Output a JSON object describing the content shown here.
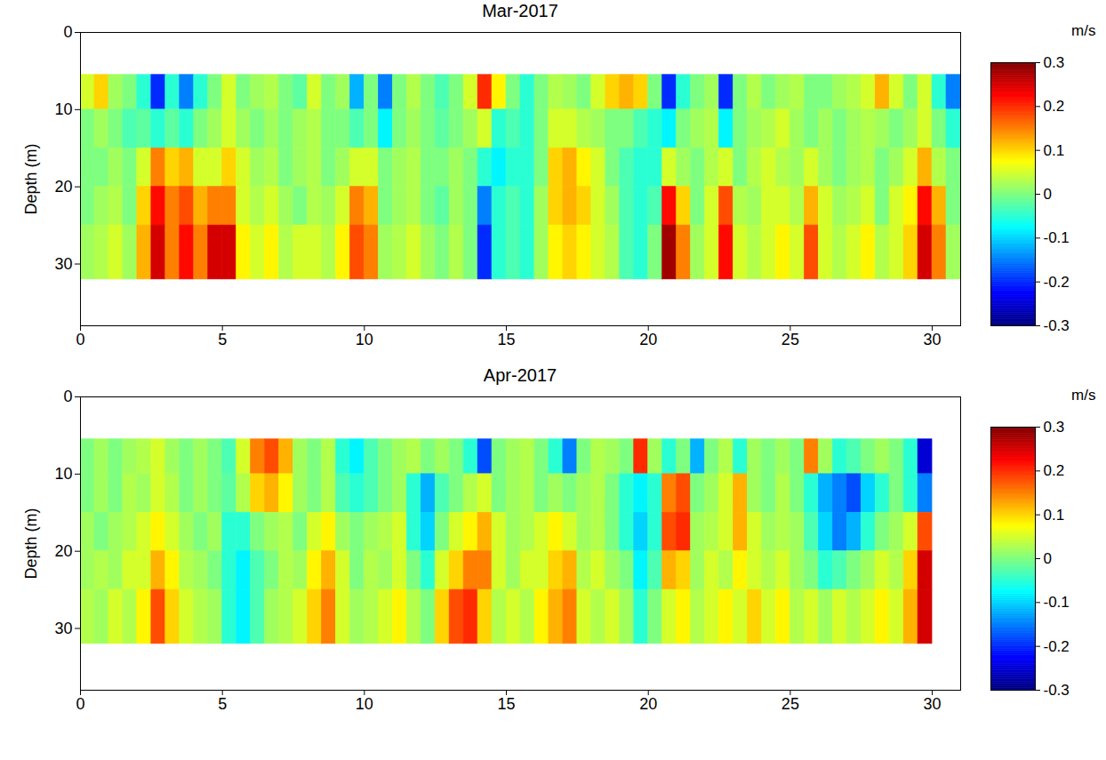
{
  "chart_data": [
    {
      "type": "heatmap",
      "title": "Mar-2017",
      "ylabel": "Depth (m)",
      "xlim": [
        0,
        31
      ],
      "xticks": [
        0,
        5,
        10,
        15,
        20,
        25,
        30
      ],
      "ylim": [
        0,
        38
      ],
      "yticks": [
        0,
        10,
        20,
        30
      ],
      "x_edges": [
        0,
        0.5,
        1,
        1.5,
        2,
        2.5,
        3,
        3.5,
        4,
        4.5,
        5,
        5.5,
        6,
        6.5,
        7,
        7.5,
        8,
        8.5,
        9,
        9.5,
        10,
        10.5,
        11,
        11.5,
        12,
        12.5,
        13,
        13.5,
        14,
        14.5,
        15,
        15.5,
        16,
        16.5,
        17,
        17.5,
        18,
        18.5,
        19,
        19.5,
        20,
        20.5,
        21,
        21.5,
        22,
        22.5,
        23,
        23.5,
        24,
        24.5,
        25,
        25.5,
        26,
        26.5,
        27,
        27.5,
        28,
        28.5,
        29,
        29.5,
        30,
        30.5,
        31
      ],
      "depth_edges": [
        5.5,
        10,
        15,
        20,
        25,
        32
      ],
      "values": [
        [
          0.05,
          0.1,
          0.02,
          0,
          -0.05,
          -0.2,
          -0.05,
          -0.15,
          -0.05,
          0,
          0.05,
          0,
          0.02,
          0.03,
          0,
          -0.02,
          0.05,
          0,
          0.02,
          -0.12,
          0,
          -0.15,
          0,
          0.03,
          0,
          -0.03,
          0,
          0.05,
          0.2,
          0.08,
          0,
          -0.05,
          0,
          0.03,
          0.02,
          0,
          0.05,
          0.1,
          0.12,
          0.1,
          0,
          -0.2,
          -0.05,
          0,
          0.02,
          -0.2,
          0,
          0.03,
          0,
          0.02,
          0.03,
          0,
          0,
          0.02,
          0.03,
          0.05,
          0.12,
          0.05,
          0,
          0.05,
          -0.05,
          -0.15
        ],
        [
          0,
          0.02,
          0,
          -0.03,
          -0.02,
          -0.05,
          -0.02,
          -0.05,
          0,
          0.02,
          0.05,
          0.02,
          0,
          0.02,
          0,
          0.02,
          0.03,
          0,
          0,
          -0.03,
          0,
          -0.08,
          0,
          0.02,
          0,
          -0.02,
          0,
          0.02,
          0.05,
          -0.05,
          -0.03,
          -0.05,
          0,
          0.05,
          0.05,
          0.03,
          0.02,
          0,
          0,
          -0.03,
          -0.05,
          -0.08,
          0,
          0.02,
          0.03,
          -0.08,
          0,
          0.02,
          0.03,
          0.05,
          0.02,
          0,
          0.02,
          0,
          0.02,
          0.03,
          0.02,
          0,
          0.02,
          0.05,
          0,
          -0.05
        ],
        [
          0,
          0,
          0.02,
          0,
          0.05,
          0.15,
          0.1,
          0.12,
          0.05,
          0.05,
          0.1,
          0.05,
          0.02,
          0.03,
          0,
          0.02,
          0.03,
          0,
          0.02,
          0.05,
          0.05,
          0,
          0.02,
          0.03,
          0,
          0,
          0.02,
          0,
          -0.05,
          -0.08,
          -0.05,
          -0.05,
          0,
          0.1,
          0.12,
          0.08,
          0.05,
          0,
          -0.03,
          -0.05,
          -0.05,
          0.05,
          0.02,
          0,
          0.03,
          0.05,
          0,
          0.03,
          0.05,
          0.03,
          0.02,
          0.05,
          0.02,
          0,
          0.02,
          0.03,
          0,
          0.02,
          0.05,
          0.12,
          0.03,
          0
        ],
        [
          0,
          0.02,
          0.03,
          0,
          0.1,
          0.22,
          0.15,
          0.18,
          0.12,
          0.15,
          0.15,
          0.05,
          0.03,
          0.05,
          0.02,
          0,
          0.03,
          0.02,
          0.05,
          0.15,
          0.12,
          0,
          0.02,
          0.03,
          0,
          -0.02,
          0.02,
          0,
          -0.15,
          -0.05,
          -0.03,
          -0.05,
          0.02,
          0.1,
          0.12,
          0.1,
          0.05,
          0.02,
          -0.03,
          -0.05,
          -0.03,
          0.22,
          0.1,
          0,
          0.05,
          0.18,
          0.03,
          0.02,
          0.05,
          0.05,
          0.03,
          0.12,
          0.05,
          0.02,
          0.03,
          0.05,
          0,
          0.05,
          0.08,
          0.22,
          0.12,
          0
        ],
        [
          0.02,
          0.03,
          0.05,
          0.02,
          0.12,
          0.25,
          0.15,
          0.22,
          0.15,
          0.25,
          0.25,
          0.08,
          0.05,
          0.08,
          0.03,
          0.05,
          0.05,
          0.03,
          0.08,
          0.18,
          0.15,
          0.02,
          0.03,
          0.05,
          0.02,
          0,
          0.03,
          0,
          -0.2,
          -0.05,
          -0.03,
          -0.05,
          0.02,
          0.08,
          0.1,
          0.08,
          0.05,
          0.03,
          -0.03,
          -0.05,
          0,
          0.28,
          0.15,
          0.02,
          0.05,
          0.22,
          0.05,
          0.03,
          0.05,
          0.08,
          0.05,
          0.18,
          0.05,
          0.03,
          0.05,
          0.08,
          0.03,
          0.05,
          0.1,
          0.25,
          0.15,
          0.02
        ]
      ],
      "colorbar": {
        "label": "m/s",
        "range": [
          -0.3,
          0.3
        ],
        "ticks": [
          -0.3,
          -0.2,
          -0.1,
          0,
          0.1,
          0.2,
          0.3
        ]
      }
    },
    {
      "type": "heatmap",
      "title": "Apr-2017",
      "ylabel": "Depth (m)",
      "xlim": [
        0,
        31
      ],
      "xticks": [
        0,
        5,
        10,
        15,
        20,
        25,
        30
      ],
      "ylim": [
        0,
        38
      ],
      "yticks": [
        0,
        10,
        20,
        30
      ],
      "x_edges": [
        0,
        0.5,
        1,
        1.5,
        2,
        2.5,
        3,
        3.5,
        4,
        4.5,
        5,
        5.5,
        6,
        6.5,
        7,
        7.5,
        8,
        8.5,
        9,
        9.5,
        10,
        10.5,
        11,
        11.5,
        12,
        12.5,
        13,
        13.5,
        14,
        14.5,
        15,
        15.5,
        16,
        16.5,
        17,
        17.5,
        18,
        18.5,
        19,
        19.5,
        20,
        20.5,
        21,
        21.5,
        22,
        22.5,
        23,
        23.5,
        24,
        24.5,
        25,
        25.5,
        26,
        26.5,
        27,
        27.5,
        28,
        28.5,
        29,
        29.5,
        30
      ],
      "depth_edges": [
        5.5,
        10,
        15,
        20,
        25,
        32
      ],
      "values": [
        [
          0,
          0.02,
          0,
          0.02,
          0.03,
          0.05,
          0.02,
          0,
          0.02,
          0,
          -0.03,
          0.05,
          0.15,
          0.18,
          0.12,
          0.02,
          0,
          0.03,
          -0.05,
          -0.08,
          -0.03,
          0,
          0.02,
          0.03,
          0,
          0.02,
          0,
          -0.05,
          -0.18,
          0,
          0.02,
          0.03,
          0,
          -0.05,
          -0.15,
          0,
          0.03,
          0.02,
          0,
          0.2,
          0.02,
          -0.05,
          0,
          -0.12,
          0,
          0.03,
          -0.05,
          0.02,
          0,
          0.02,
          0,
          0.15,
          0.02,
          -0.05,
          -0.03,
          0,
          0.02,
          0,
          -0.05,
          -0.25
        ],
        [
          0,
          0.02,
          0,
          0.03,
          0.02,
          0.05,
          0.03,
          0,
          0.02,
          0,
          -0.02,
          0.03,
          0.1,
          0.12,
          0.08,
          0.02,
          0,
          0.03,
          -0.03,
          -0.05,
          -0.03,
          0,
          0.02,
          -0.05,
          -0.12,
          -0.03,
          0,
          0.03,
          0.05,
          0,
          0.02,
          0.03,
          0,
          0.02,
          0,
          0.02,
          0.03,
          0,
          -0.05,
          -0.08,
          -0.05,
          0.15,
          0.18,
          0,
          0.02,
          0.05,
          0.12,
          0.02,
          0,
          0.03,
          0,
          -0.05,
          -0.12,
          -0.15,
          -0.18,
          -0.1,
          -0.05,
          0,
          -0.05,
          -0.15
        ],
        [
          0.02,
          0,
          0.02,
          0.03,
          0.05,
          0.08,
          0.05,
          0.02,
          0,
          0.02,
          -0.05,
          -0.05,
          0,
          0.02,
          0.03,
          0,
          0.05,
          0.08,
          0.02,
          0,
          0.02,
          0.03,
          0.05,
          -0.05,
          -0.1,
          0,
          0.05,
          0.08,
          0.12,
          0.05,
          0.02,
          0.03,
          0.05,
          0.08,
          0.05,
          0.02,
          0.03,
          0,
          -0.05,
          -0.1,
          -0.05,
          0.18,
          0.2,
          0.02,
          0.03,
          0.05,
          0.12,
          0.05,
          0.02,
          0.03,
          0.02,
          -0.03,
          -0.1,
          -0.15,
          -0.12,
          -0.05,
          0,
          0.02,
          0.05,
          0.18
        ],
        [
          0.02,
          0.03,
          0.02,
          0.05,
          0.05,
          0.12,
          0.08,
          0.03,
          0.02,
          0,
          -0.05,
          -0.08,
          -0.03,
          0,
          0.03,
          0.02,
          0.08,
          0.12,
          0.05,
          0,
          0.03,
          0.02,
          0.05,
          0,
          -0.05,
          0.05,
          0.1,
          0.15,
          0.15,
          0.05,
          0.02,
          0.05,
          0.05,
          0.1,
          0.12,
          0.03,
          0.05,
          0.02,
          0,
          -0.08,
          -0.03,
          0.12,
          0.1,
          0.02,
          0.05,
          0.03,
          0.08,
          0.05,
          0.03,
          0.05,
          0.02,
          0,
          -0.05,
          -0.03,
          0,
          0.02,
          0.05,
          0.03,
          0.1,
          0.25
        ],
        [
          0.03,
          0.02,
          0.05,
          0.03,
          0.08,
          0.18,
          0.1,
          0.05,
          0.03,
          0.02,
          -0.05,
          -0.08,
          -0.03,
          0.02,
          0.03,
          0.05,
          0.1,
          0.15,
          0.05,
          0.02,
          0.03,
          0.05,
          0.08,
          0.03,
          0,
          0.1,
          0.18,
          0.2,
          0.1,
          0.03,
          0.05,
          0.03,
          0.08,
          0.12,
          0.15,
          0.05,
          0.03,
          0.05,
          0.02,
          -0.05,
          0,
          0.05,
          0.08,
          0.03,
          0.05,
          0.08,
          0.05,
          0.1,
          0.05,
          0.08,
          0.03,
          0.05,
          0.02,
          0.05,
          0.03,
          0.05,
          0.08,
          0.05,
          0.12,
          0.25
        ]
      ],
      "colorbar": {
        "label": "m/s",
        "range": [
          -0.3,
          0.3
        ],
        "ticks": [
          -0.3,
          -0.2,
          -0.1,
          0,
          0.1,
          0.2,
          0.3
        ]
      }
    }
  ]
}
